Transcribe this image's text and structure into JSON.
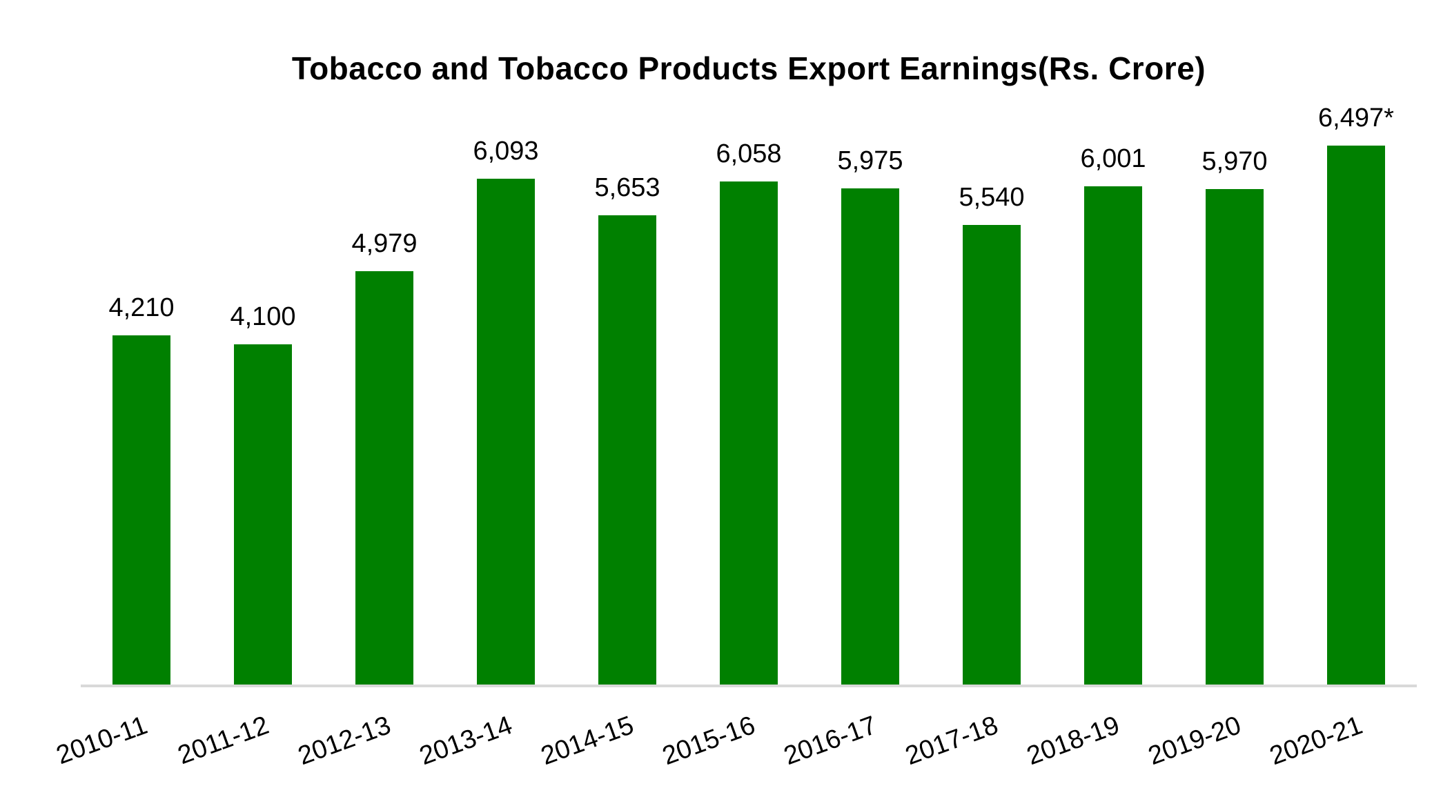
{
  "chart_data": {
    "type": "bar",
    "title": "Tobacco and Tobacco Products Export Earnings(Rs. Crore)",
    "categories": [
      "2010-11",
      "2011-12",
      "2012-13",
      "2013-14",
      "2014-15",
      "2015-16",
      "2016-17",
      "2017-18",
      "2018-19",
      "2019-20",
      "2020-21"
    ],
    "values": [
      4210,
      4100,
      4979,
      6093,
      5653,
      6058,
      5975,
      5540,
      6001,
      5970,
      6497
    ],
    "value_labels": [
      "4,210",
      "4,100",
      "4,979",
      "6,093",
      "5,653",
      "6,058",
      "5,975",
      "5,540",
      "6,001",
      "5,970",
      "6,497*"
    ],
    "xlabel": "",
    "ylabel": "",
    "ylim": [
      0,
      7000
    ],
    "grid": false,
    "legend": false,
    "bar_color": "#008000",
    "axis_line_color": "#d9d9d9",
    "text_color": "#000000",
    "x_tick_rotation_deg": -20
  }
}
